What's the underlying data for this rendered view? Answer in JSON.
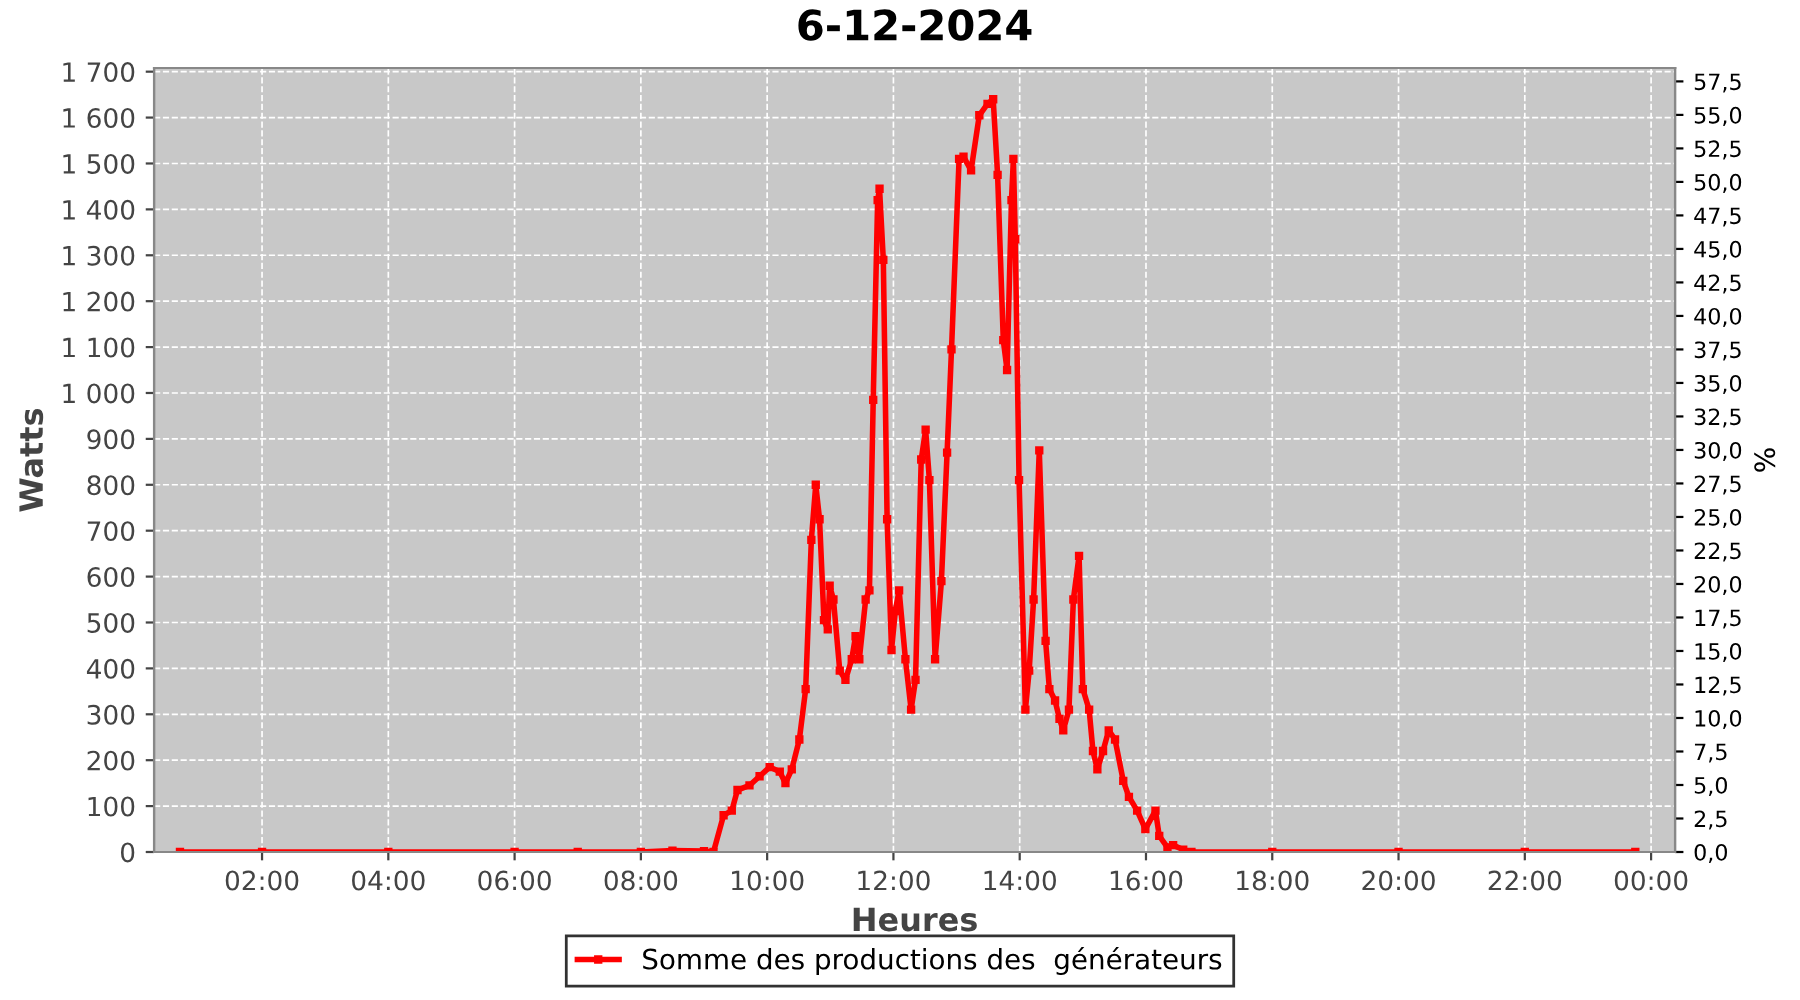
{
  "chart_data": {
    "type": "line",
    "title": "6-12-2024",
    "xlabel": "Heures",
    "ylabel": "Watts",
    "y2label": "%",
    "x": [
      0.7,
      2.0,
      4.0,
      6.0,
      7.0,
      8.0,
      8.5,
      9.0,
      9.15,
      9.31,
      9.44,
      9.53,
      9.72,
      9.88,
      10.04,
      10.2,
      10.29,
      10.39,
      10.51,
      10.61,
      10.7,
      10.77,
      10.83,
      10.9,
      10.96,
      10.99,
      11.05,
      11.15,
      11.24,
      11.34,
      11.4,
      11.46,
      11.56,
      11.62,
      11.68,
      11.75,
      11.78,
      11.84,
      11.9,
      11.97,
      12.03,
      12.09,
      12.19,
      12.28,
      12.35,
      12.44,
      12.51,
      12.57,
      12.66,
      12.76,
      12.85,
      12.92,
      13.04,
      13.11,
      13.23,
      13.36,
      13.49,
      13.58,
      13.65,
      13.74,
      13.8,
      13.87,
      13.9,
      13.93,
      13.99,
      14.09,
      14.15,
      14.22,
      14.31,
      14.41,
      14.47,
      14.56,
      14.63,
      14.69,
      14.78,
      14.85,
      14.94,
      15.0,
      15.1,
      15.16,
      15.23,
      15.32,
      15.41,
      15.51,
      15.64,
      15.73,
      15.86,
      15.99,
      16.15,
      16.21,
      16.34,
      16.43,
      16.59,
      16.72,
      18.0,
      20.0,
      22.0,
      23.75
    ],
    "series": [
      {
        "name": "Somme des productions des  générateurs",
        "color": "#ff0000",
        "values": [
          0,
          0,
          0,
          0,
          0,
          0,
          3,
          2,
          0,
          80,
          90,
          135,
          145,
          165,
          185,
          175,
          150,
          180,
          245,
          355,
          680,
          800,
          725,
          505,
          485,
          580,
          550,
          395,
          375,
          420,
          470,
          420,
          550,
          570,
          985,
          1420,
          1445,
          1290,
          725,
          440,
          525,
          570,
          420,
          310,
          375,
          855,
          920,
          810,
          420,
          590,
          870,
          1095,
          1510,
          1515,
          1485,
          1605,
          1630,
          1640,
          1475,
          1115,
          1050,
          1420,
          1510,
          1335,
          810,
          310,
          395,
          550,
          875,
          460,
          355,
          330,
          290,
          265,
          310,
          550,
          645,
          355,
          310,
          220,
          180,
          220,
          265,
          245,
          155,
          120,
          90,
          50,
          90,
          35,
          10,
          15,
          5,
          0,
          0,
          0,
          0,
          0
        ]
      }
    ],
    "xlim": [
      0.29,
      24.38
    ],
    "xticks": [
      {
        "value": 2,
        "label": "02:00"
      },
      {
        "value": 4,
        "label": "04:00"
      },
      {
        "value": 6,
        "label": "06:00"
      },
      {
        "value": 8,
        "label": "08:00"
      },
      {
        "value": 10,
        "label": "10:00"
      },
      {
        "value": 12,
        "label": "12:00"
      },
      {
        "value": 14,
        "label": "14:00"
      },
      {
        "value": 16,
        "label": "16:00"
      },
      {
        "value": 18,
        "label": "18:00"
      },
      {
        "value": 20,
        "label": "20:00"
      },
      {
        "value": 22,
        "label": "22:00"
      },
      {
        "value": 24,
        "label": "00:00"
      }
    ],
    "ylim": [
      0,
      1708
    ],
    "yticks": [
      0,
      100,
      200,
      300,
      400,
      500,
      600,
      700,
      800,
      900,
      {
        "value": 1000,
        "label": "1 000"
      },
      {
        "value": 1100,
        "label": "1 100"
      },
      {
        "value": 1200,
        "label": "1 200"
      },
      {
        "value": 1300,
        "label": "1 300"
      },
      {
        "value": 1400,
        "label": "1 400"
      },
      {
        "value": 1500,
        "label": "1 500"
      },
      {
        "value": 1600,
        "label": "1 600"
      },
      {
        "value": 1700,
        "label": "1 700"
      }
    ],
    "y2lim": [
      0,
      58.5
    ],
    "y2ticks": [
      {
        "value": 0,
        "label": "0,0"
      },
      {
        "value": 2.5,
        "label": "2,5"
      },
      {
        "value": 5,
        "label": "5,0"
      },
      {
        "value": 7.5,
        "label": "7,5"
      },
      {
        "value": 10,
        "label": "10,0"
      },
      {
        "value": 12.5,
        "label": "12,5"
      },
      {
        "value": 15,
        "label": "15,0"
      },
      {
        "value": 17.5,
        "label": "17,5"
      },
      {
        "value": 20,
        "label": "20,0"
      },
      {
        "value": 22.5,
        "label": "22,5"
      },
      {
        "value": 25,
        "label": "25,0"
      },
      {
        "value": 27.5,
        "label": "27,5"
      },
      {
        "value": 30,
        "label": "30,0"
      },
      {
        "value": 32.5,
        "label": "32,5"
      },
      {
        "value": 35,
        "label": "35,0"
      },
      {
        "value": 37.5,
        "label": "37,5"
      },
      {
        "value": 40,
        "label": "40,0"
      },
      {
        "value": 42.5,
        "label": "42,5"
      },
      {
        "value": 45,
        "label": "45,0"
      },
      {
        "value": 47.5,
        "label": "47,5"
      },
      {
        "value": 50,
        "label": "50,0"
      },
      {
        "value": 52.5,
        "label": "52,5"
      },
      {
        "value": 55,
        "label": "55,0"
      },
      {
        "value": 57.5,
        "label": "57,5"
      }
    ],
    "grid": true,
    "legend": "bottom",
    "marker": "square",
    "line_style": "solid"
  }
}
